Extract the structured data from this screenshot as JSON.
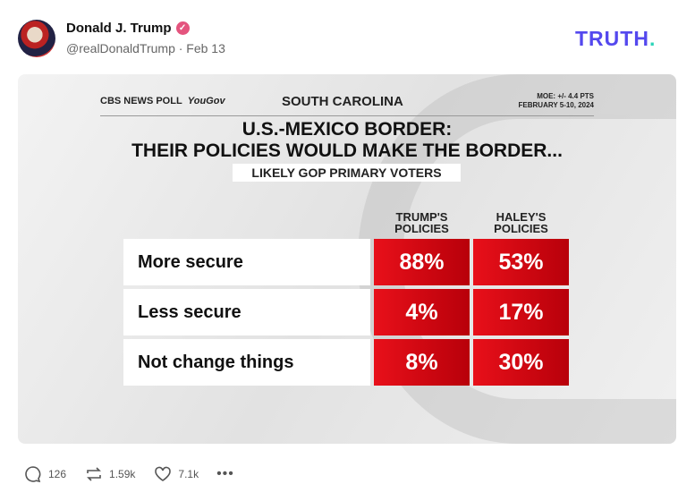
{
  "post": {
    "author": "Donald J. Trump",
    "handle": "@realDonaldTrump · Feb 13",
    "verified_icon": "check-badge-icon",
    "brand": "TRUTH",
    "brand_dot": ".",
    "brand_color": "#5448ee"
  },
  "poll": {
    "source": "CBS NEWS POLL",
    "partner": "YouGov",
    "region": "SOUTH CAROLINA",
    "moe": "MOE: +/- 4.4 PTS",
    "dates": "FEBRUARY 5-10, 2024",
    "title_line1": "U.S.-MEXICO BORDER:",
    "title_line2": "THEIR POLICIES WOULD MAKE THE BORDER...",
    "subtitle": "LIKELY GOP PRIMARY VOTERS",
    "columns": [
      "TRUMP'S POLICIES",
      "HALEY'S POLICIES"
    ],
    "rows": [
      {
        "label": "More secure",
        "trump": "88%",
        "haley": "53%"
      },
      {
        "label": "Less secure",
        "trump": "4%",
        "haley": "17%"
      },
      {
        "label": "Not change things",
        "trump": "8%",
        "haley": "30%"
      }
    ],
    "accent": "#e8101a"
  },
  "actions": {
    "replies": "126",
    "reposts": "1.59k",
    "likes": "7.1k"
  }
}
